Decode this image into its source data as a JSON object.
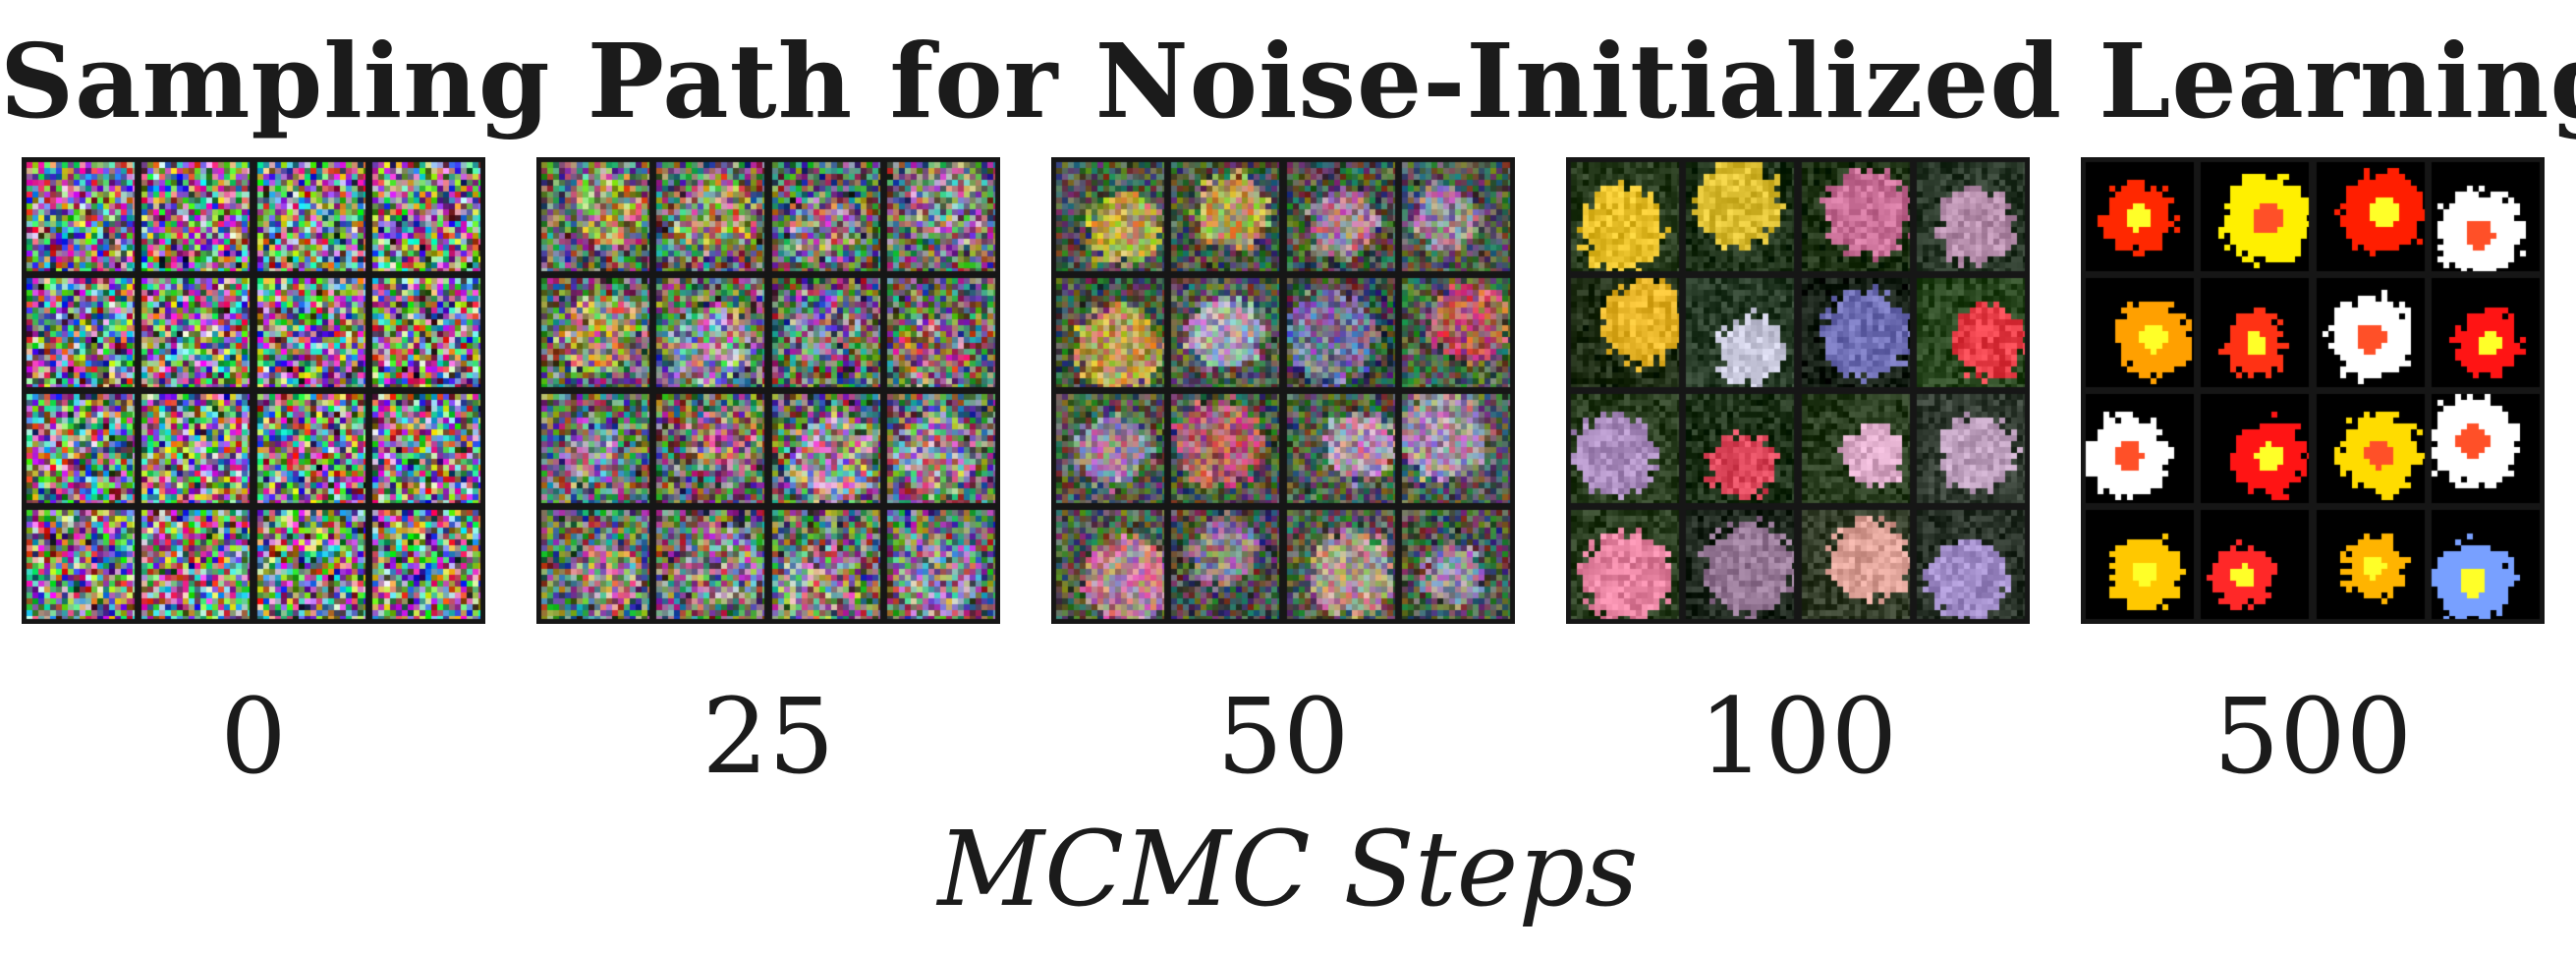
{
  "figure": {
    "title": "Sampling Path for Noise-Initialized Learning",
    "axis_label": "MCMC Steps",
    "panels": [
      {
        "step": "0",
        "style": "noise"
      },
      {
        "step": "25",
        "style": "faint"
      },
      {
        "step": "50",
        "style": "emerging"
      },
      {
        "step": "100",
        "style": "flowers"
      },
      {
        "step": "500",
        "style": "saturated"
      }
    ],
    "grid": {
      "rows": 4,
      "cols": 4
    },
    "colors": {
      "frame": "#161616",
      "text": "#1b1b1b",
      "background": "#ffffff"
    }
  }
}
